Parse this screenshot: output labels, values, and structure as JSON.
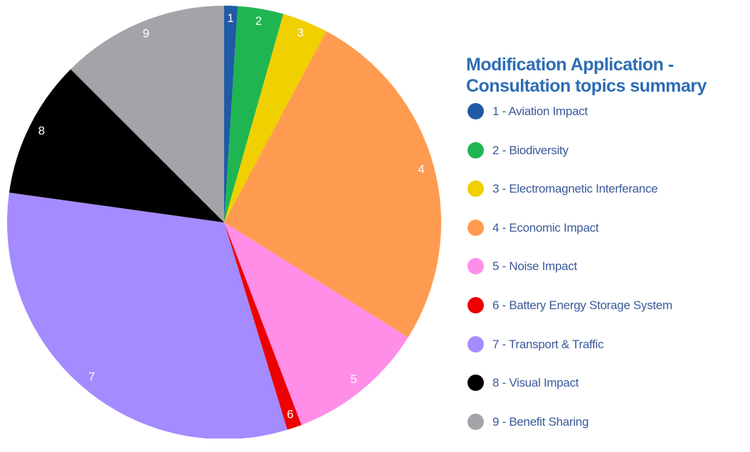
{
  "chart_data": {
    "type": "pie",
    "title": "Modification Application - Consultation topics summary",
    "categories": [
      "1 - Aviation Impact",
      "2 - Biodiversity",
      "3 - Electromagnetic Interferance",
      "4 - Economic Impact",
      "5 - Noise Impact",
      "6 - Battery Energy Storage System",
      "7 - Transport & Traffic",
      "8 - Visual Impact",
      "9 - Benefit Sharing"
    ],
    "slice_labels": [
      "1",
      "2",
      "3",
      "4",
      "5",
      "6",
      "7",
      "8",
      "9"
    ],
    "values": [
      1.0,
      3.4,
      3.4,
      26.1,
      10.3,
      1.1,
      31.9,
      10.3,
      12.5
    ],
    "colors": [
      "#1f5aa6",
      "#1fb651",
      "#f0d000",
      "#ff9b50",
      "#ff8ee8",
      "#ee0000",
      "#a48bff",
      "#000000",
      "#a3a4a8"
    ]
  }
}
